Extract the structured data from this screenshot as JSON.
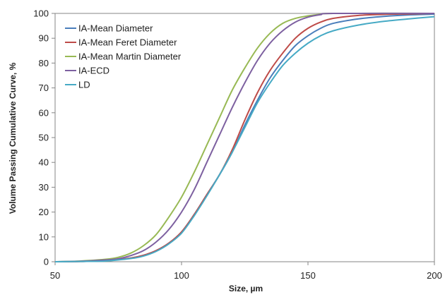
{
  "chart_data": {
    "type": "line",
    "title": "",
    "xlabel": "Size, µm",
    "ylabel": "Volume Passing Cumulative Curve, %",
    "xlim": [
      50,
      200
    ],
    "ylim": [
      0,
      100
    ],
    "xticks": [
      "50",
      "100",
      "150",
      "200"
    ],
    "yticks": [
      "0",
      "10",
      "20",
      "30",
      "40",
      "50",
      "60",
      "70",
      "80",
      "90",
      "100"
    ],
    "grid": false,
    "legend_position": "top-left",
    "series": [
      {
        "name": "IA-Mean Diameter",
        "color": "#4a7ebb",
        "points": [
          [
            50,
            0
          ],
          [
            60,
            0.1
          ],
          [
            70,
            0.4
          ],
          [
            80,
            1.5
          ],
          [
            85,
            2.6
          ],
          [
            90,
            4.5
          ],
          [
            95,
            7.5
          ],
          [
            100,
            12
          ],
          [
            105,
            19
          ],
          [
            110,
            27
          ],
          [
            115,
            35
          ],
          [
            120,
            44
          ],
          [
            125,
            55
          ],
          [
            130,
            65
          ],
          [
            135,
            74
          ],
          [
            140,
            81
          ],
          [
            145,
            87
          ],
          [
            150,
            91
          ],
          [
            155,
            94
          ],
          [
            160,
            96
          ],
          [
            170,
            97.8
          ],
          [
            180,
            98.8
          ],
          [
            190,
            99.4
          ],
          [
            200,
            99.7
          ]
        ]
      },
      {
        "name": "IA-Mean Feret Diameter",
        "color": "#be4b48",
        "points": [
          [
            50,
            0
          ],
          [
            60,
            0.1
          ],
          [
            70,
            0.4
          ],
          [
            80,
            1.5
          ],
          [
            85,
            2.6
          ],
          [
            90,
            4.5
          ],
          [
            95,
            7.5
          ],
          [
            100,
            12
          ],
          [
            105,
            19
          ],
          [
            110,
            27
          ],
          [
            115,
            35
          ],
          [
            120,
            45
          ],
          [
            125,
            57
          ],
          [
            130,
            68
          ],
          [
            135,
            77
          ],
          [
            140,
            84
          ],
          [
            145,
            90
          ],
          [
            150,
            94
          ],
          [
            155,
            96.5
          ],
          [
            160,
            98
          ],
          [
            170,
            99.2
          ],
          [
            180,
            99.6
          ],
          [
            190,
            99.8
          ],
          [
            200,
            100
          ]
        ]
      },
      {
        "name": "IA-Mean Martin Diameter",
        "color": "#98b954",
        "points": [
          [
            50,
            0
          ],
          [
            60,
            0.3
          ],
          [
            70,
            1
          ],
          [
            75,
            1.8
          ],
          [
            80,
            3.5
          ],
          [
            85,
            6.5
          ],
          [
            90,
            11
          ],
          [
            95,
            18
          ],
          [
            100,
            26
          ],
          [
            105,
            36
          ],
          [
            110,
            47
          ],
          [
            115,
            58
          ],
          [
            120,
            69
          ],
          [
            125,
            78
          ],
          [
            130,
            86
          ],
          [
            135,
            92
          ],
          [
            140,
            96
          ],
          [
            145,
            98
          ],
          [
            150,
            99
          ],
          [
            155,
            99.6
          ],
          [
            160,
            100
          ],
          [
            200,
            100
          ]
        ]
      },
      {
        "name": "IA-ECD",
        "color": "#7d60a0",
        "points": [
          [
            50,
            0
          ],
          [
            60,
            0.2
          ],
          [
            70,
            0.7
          ],
          [
            75,
            1.2
          ],
          [
            80,
            2.5
          ],
          [
            85,
            4.5
          ],
          [
            90,
            8
          ],
          [
            95,
            13
          ],
          [
            100,
            20
          ],
          [
            105,
            29
          ],
          [
            110,
            40
          ],
          [
            115,
            51
          ],
          [
            120,
            62
          ],
          [
            125,
            72
          ],
          [
            130,
            81
          ],
          [
            135,
            88
          ],
          [
            140,
            93
          ],
          [
            145,
            96.5
          ],
          [
            150,
            98.5
          ],
          [
            155,
            99.5
          ],
          [
            160,
            100
          ],
          [
            200,
            100
          ]
        ]
      },
      {
        "name": "LD",
        "color": "#46aac5",
        "points": [
          [
            50,
            0
          ],
          [
            60,
            0.1
          ],
          [
            70,
            0.3
          ],
          [
            80,
            1.3
          ],
          [
            85,
            2.3
          ],
          [
            90,
            4.2
          ],
          [
            95,
            7.2
          ],
          [
            100,
            11.5
          ],
          [
            105,
            18.5
          ],
          [
            110,
            26.5
          ],
          [
            115,
            35
          ],
          [
            120,
            44
          ],
          [
            125,
            54
          ],
          [
            130,
            64
          ],
          [
            135,
            72
          ],
          [
            140,
            79
          ],
          [
            145,
            84
          ],
          [
            150,
            88
          ],
          [
            155,
            91
          ],
          [
            160,
            93
          ],
          [
            170,
            95.3
          ],
          [
            180,
            96.8
          ],
          [
            190,
            97.8
          ],
          [
            200,
            98.7
          ]
        ]
      }
    ]
  }
}
